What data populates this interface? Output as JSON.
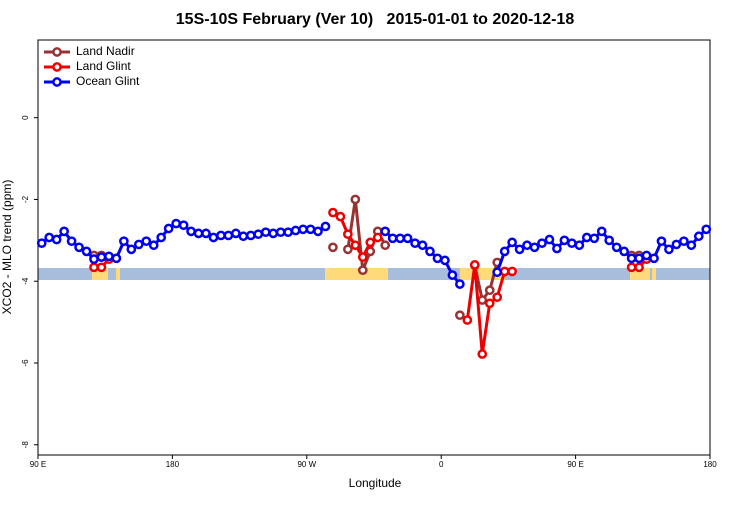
{
  "chart_data": {
    "type": "line",
    "title": "15S-10S February (Ver 10)   2015-01-01 to 2020-12-18",
    "xlabel": "Longitude",
    "ylabel": "XCO2 - MLO trend (ppm)",
    "xlim": [
      90,
      540
    ],
    "xticks": [
      {
        "value": 90,
        "label": "90 E"
      },
      180,
      {
        "value": 270,
        "label": "90 W"
      },
      {
        "value": 360,
        "label": "0"
      },
      {
        "value": 450,
        "label": "90 E"
      },
      {
        "value": 540,
        "label": "180"
      }
    ],
    "ylim": [
      -8.25,
      1.9
    ],
    "yticks": [
      -8,
      -6,
      -4,
      -2,
      0
    ],
    "grid": false,
    "legend": "top-left",
    "series": [
      {
        "name": "Land Nadir",
        "color": "#993333",
        "x": [
          127.5,
          132.5,
          137.5,
          287.5,
          292.5,
          297.5,
          302.5,
          307.5,
          312.5,
          317.5,
          322.5,
          367.5,
          372.5,
          377.5,
          382.5,
          387.5,
          392.5,
          397.5,
          402.5,
          487.5,
          492.5
        ],
        "values": [
          -3.37,
          -3.37,
          null,
          -3.17,
          null,
          -3.22,
          -2.0,
          -3.73,
          -3.27,
          -2.78,
          -3.12,
          null,
          -4.83,
          null,
          -3.61,
          -4.46,
          -4.22,
          -3.54,
          null,
          -3.37,
          -3.37
        ]
      },
      {
        "name": "Land Glint",
        "color": "#ee0000",
        "x": [
          127.5,
          132.5,
          137.5,
          282.5,
          287.5,
          292.5,
          297.5,
          302.5,
          307.5,
          312.5,
          317.5,
          322.5,
          372.5,
          377.5,
          382.5,
          387.5,
          392.5,
          397.5,
          402.5,
          407.5,
          482.5,
          487.5,
          492.5,
          497.5
        ],
        "values": [
          -3.66,
          -3.66,
          -3.46,
          null,
          -2.32,
          -2.42,
          -2.85,
          -3.12,
          -3.41,
          -3.05,
          -2.93,
          null,
          null,
          -4.95,
          -3.6,
          -5.78,
          -4.54,
          -4.39,
          -3.76,
          -3.76,
          null,
          -3.66,
          -3.66,
          -3.46
        ]
      },
      {
        "name": "Ocean Glint",
        "color": "#0000ee",
        "x": [
          92.5,
          97.5,
          102.5,
          107.5,
          112.5,
          117.5,
          122.5,
          127.5,
          132.5,
          137.5,
          142.5,
          147.5,
          152.5,
          157.5,
          162.5,
          167.5,
          172.5,
          177.5,
          182.5,
          187.5,
          192.5,
          197.5,
          202.5,
          207.5,
          212.5,
          217.5,
          222.5,
          227.5,
          232.5,
          237.5,
          242.5,
          247.5,
          252.5,
          257.5,
          262.5,
          267.5,
          272.5,
          277.5,
          282.5,
          302.5,
          322.5,
          327.5,
          332.5,
          337.5,
          342.5,
          347.5,
          352.5,
          357.5,
          362.5,
          367.5,
          372.5,
          387.5,
          397.5,
          402.5,
          407.5,
          412.5,
          417.5,
          422.5,
          427.5,
          432.5,
          437.5,
          442.5,
          447.5,
          452.5,
          457.5,
          462.5,
          467.5,
          472.5,
          477.5,
          482.5,
          487.5,
          492.5,
          497.5,
          502.5,
          507.5,
          512.5,
          517.5,
          522.5,
          527.5,
          532.5,
          537.5
        ],
        "values": [
          -3.07,
          -2.93,
          -2.98,
          -2.78,
          -3.02,
          -3.17,
          -3.27,
          -3.46,
          -3.41,
          -3.39,
          -3.44,
          -3.02,
          -3.22,
          -3.1,
          -3.02,
          -3.12,
          -2.93,
          -2.71,
          -2.59,
          -2.63,
          -2.78,
          -2.83,
          -2.83,
          -2.93,
          -2.88,
          -2.88,
          -2.83,
          -2.9,
          -2.88,
          -2.85,
          -2.8,
          -2.83,
          -2.8,
          -2.8,
          -2.76,
          -2.73,
          -2.73,
          -2.78,
          -2.66,
          null,
          -2.78,
          -2.95,
          -2.95,
          -2.95,
          -3.07,
          -3.12,
          -3.27,
          -3.44,
          -3.49,
          -3.85,
          -4.07,
          null,
          -3.78,
          -3.27,
          -3.05,
          -3.22,
          -3.12,
          -3.17,
          -3.07,
          -2.98,
          -3.2,
          -3.0,
          -3.07,
          -3.12,
          -2.93,
          -2.95,
          -2.78,
          -3.0,
          -3.17,
          -3.27,
          -3.44,
          -3.44,
          -3.37,
          -3.44,
          -3.02,
          -3.22,
          -3.1,
          -3.02,
          -3.12,
          -2.9,
          -2.73
        ]
      }
    ]
  }
}
